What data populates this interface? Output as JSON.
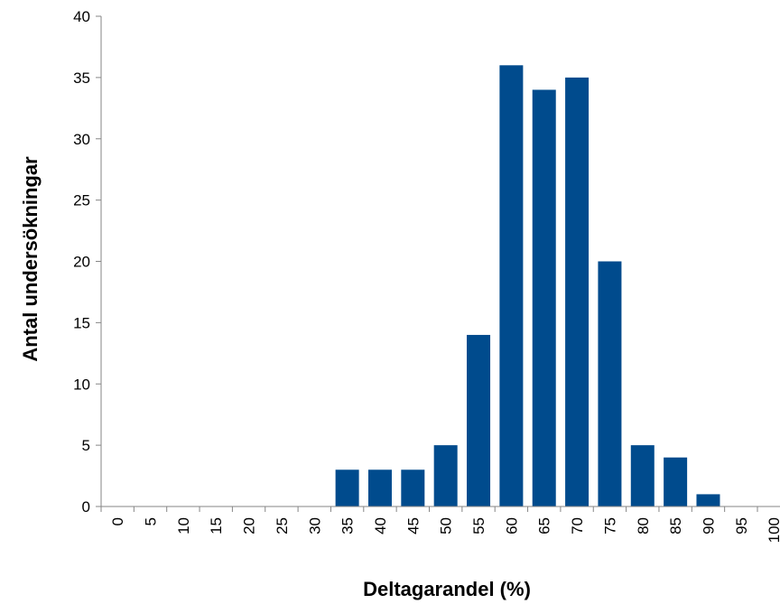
{
  "chart_data": {
    "type": "bar",
    "title": "",
    "xlabel": "Deltagarandel (%)",
    "ylabel": "Antal undersökningar",
    "categories": [
      "0",
      "5",
      "10",
      "15",
      "20",
      "25",
      "30",
      "35",
      "40",
      "45",
      "50",
      "55",
      "60",
      "65",
      "70",
      "75",
      "80",
      "85",
      "90",
      "95",
      "100"
    ],
    "values": [
      0,
      0,
      0,
      0,
      0,
      0,
      0,
      3,
      3,
      3,
      5,
      14,
      36,
      34,
      35,
      20,
      5,
      4,
      1,
      0,
      0
    ],
    "ylim": [
      0,
      40
    ],
    "yticks": [
      0,
      5,
      10,
      15,
      20,
      25,
      30,
      35,
      40
    ],
    "bar_color": "#004b8d",
    "grid": false,
    "legend": "none"
  }
}
